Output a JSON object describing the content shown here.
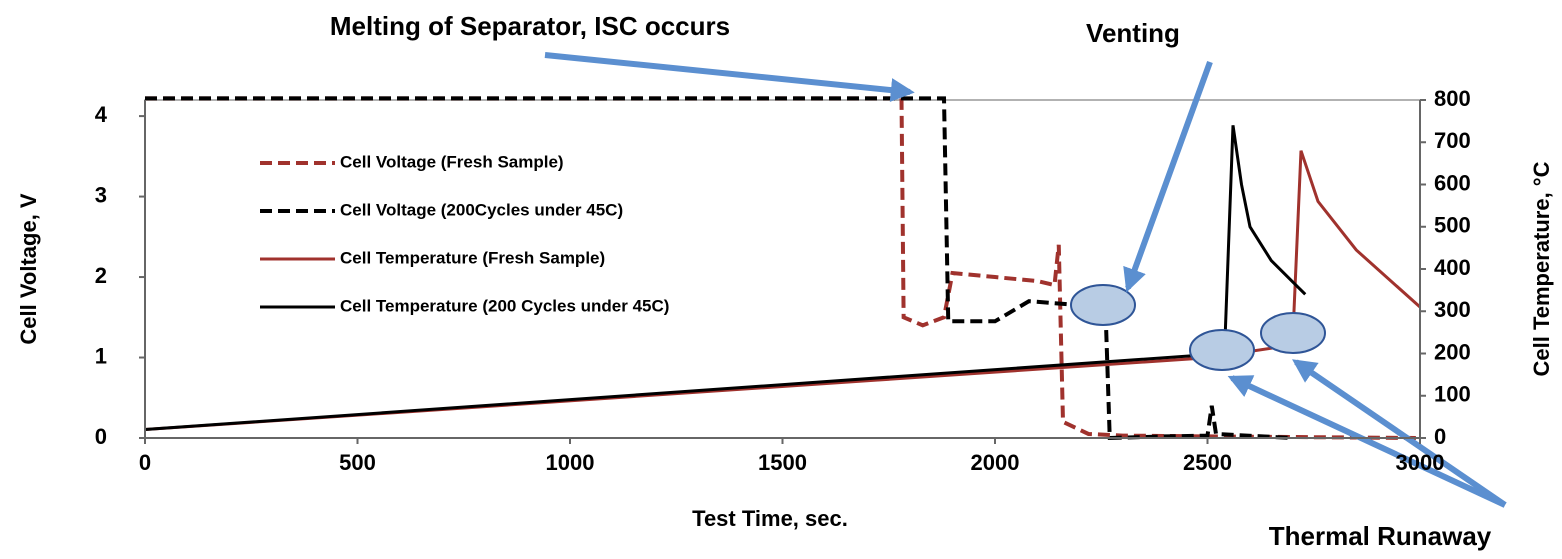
{
  "chart_data": {
    "type": "line",
    "xlabel": "Test Time, sec.",
    "ylabel": "Cell Voltage, V",
    "y2label": "Cell Temperature, °C",
    "xlim": [
      0,
      3000
    ],
    "xticks": [
      0,
      500,
      1000,
      1500,
      2000,
      2500,
      3000
    ],
    "ylim": [
      0,
      4.2
    ],
    "yticks": [
      0,
      1,
      2,
      3,
      4
    ],
    "y2lim": [
      0,
      800
    ],
    "y2ticks": [
      0,
      100,
      200,
      300,
      400,
      500,
      600,
      700,
      800
    ],
    "series": [
      {
        "name": "Cell Voltage (Fresh Sample)",
        "color": "#a0322d",
        "dash": true,
        "x": [
          0,
          1780,
          1785,
          1830,
          1880,
          1900,
          2000,
          2100,
          2140,
          2150,
          2160,
          2200,
          2220,
          2300,
          2500,
          3000
        ],
        "values": [
          4.22,
          4.22,
          1.5,
          1.4,
          1.5,
          2.05,
          2.0,
          1.95,
          1.9,
          2.4,
          0.2,
          0.1,
          0.05,
          0.03,
          0.02,
          0.0
        ]
      },
      {
        "name": "Cell Voltage (200Cycles under 45C)",
        "color": "#000000",
        "dash": true,
        "x": [
          0,
          1880,
          1890,
          2000,
          2080,
          2200,
          2260,
          2270,
          2400,
          2500,
          2510,
          2520,
          2700
        ],
        "values": [
          4.22,
          4.22,
          1.45,
          1.45,
          1.7,
          1.65,
          1.6,
          0.0,
          0.02,
          0.03,
          0.4,
          0.05,
          0.0
        ]
      },
      {
        "name": "Cell Temperature (Fresh Sample)",
        "color": "#a0322d",
        "dash": false,
        "axis": "y2",
        "x": [
          0,
          2500,
          2700,
          2720,
          2760,
          2850,
          3000
        ],
        "values": [
          20,
          190,
          220,
          680,
          560,
          445,
          310
        ]
      },
      {
        "name": "Cell Temperature (200 Cycles under 45C)",
        "color": "#000000",
        "dash": false,
        "axis": "y2",
        "x": [
          0,
          2540,
          2560,
          2580,
          2600,
          2650,
          2700,
          2730
        ],
        "values": [
          20,
          200,
          740,
          600,
          500,
          420,
          370,
          340
        ]
      }
    ],
    "annotations": [
      "Melting of Separator, ISC occurs",
      "Venting",
      "Thermal Runaway"
    ]
  }
}
